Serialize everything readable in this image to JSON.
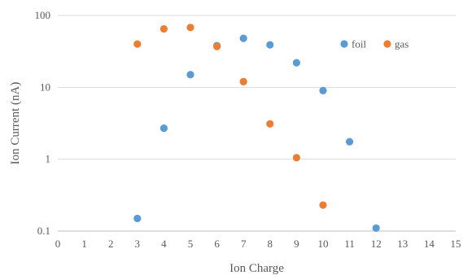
{
  "chart_data": {
    "type": "scatter",
    "title": "",
    "xlabel": "Ion Charge",
    "ylabel": "Ion Current (nA)",
    "xlim": [
      0,
      15
    ],
    "ylim": [
      0.1,
      100
    ],
    "yscale": "log",
    "x_ticks": [
      "0",
      "1",
      "2",
      "3",
      "4",
      "5",
      "6",
      "7",
      "8",
      "9",
      "10",
      "11",
      "12",
      "13",
      "14",
      "15"
    ],
    "y_ticks": [
      "0.1",
      "1",
      "10",
      "100"
    ],
    "grid": "horizontal",
    "legend_position": "top-right",
    "series": [
      {
        "name": "foil",
        "color": "#5b9bd5",
        "points": [
          {
            "x": 3,
            "y": 0.15
          },
          {
            "x": 4,
            "y": 2.7
          },
          {
            "x": 5,
            "y": 15
          },
          {
            "x": 6,
            "y": 38
          },
          {
            "x": 7,
            "y": 48
          },
          {
            "x": 8,
            "y": 39
          },
          {
            "x": 9,
            "y": 22
          },
          {
            "x": 10,
            "y": 9
          },
          {
            "x": 11,
            "y": 1.75
          },
          {
            "x": 12,
            "y": 0.11
          }
        ]
      },
      {
        "name": "gas",
        "color": "#ed7d31",
        "points": [
          {
            "x": 3,
            "y": 40
          },
          {
            "x": 4,
            "y": 65
          },
          {
            "x": 5,
            "y": 68
          },
          {
            "x": 6,
            "y": 37
          },
          {
            "x": 7,
            "y": 12
          },
          {
            "x": 8,
            "y": 3.1
          },
          {
            "x": 9,
            "y": 1.05
          },
          {
            "x": 10,
            "y": 0.23
          }
        ]
      }
    ]
  }
}
